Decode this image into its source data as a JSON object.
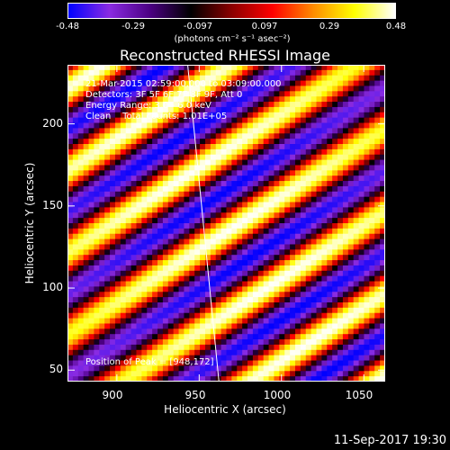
{
  "colorbar": {
    "ticks": [
      "-0.48",
      "-0.29",
      "-0.097",
      "0.097",
      "0.29",
      "0.48"
    ],
    "units": "(photons cm⁻² s⁻¹ asec⁻²)",
    "colors": [
      "#0000ff",
      "#8a2be2",
      "#4b0082",
      "#000000",
      "#8b0000",
      "#ff0000",
      "#ff8c00",
      "#ffff00",
      "#ffffff"
    ]
  },
  "info": {
    "line1": "21-Mar-2015 02:59:00.000 to 03:09:00.000",
    "line2": "Detectors: 3F 5F 6F 7F 8F 9F, Att 0",
    "line3": "Energy Range: 3.0 - 6.0 keV",
    "line4": "Clean    Total counts: 1.01E+05",
    "peak": "Position of Peak = [948,172]"
  },
  "footer": {
    "timestamp": "11-Sep-2017 19:30"
  },
  "chart_data": {
    "type": "heatmap",
    "title": "Reconstructed RHESSI Image",
    "xlabel": "Heliocentric X (arcsec)",
    "ylabel": "Heliocentric Y (arcsec)",
    "xlim": [
      870,
      1063
    ],
    "ylim": [
      43,
      236
    ],
    "xticks": [
      900,
      950,
      1000,
      1050
    ],
    "yticks": [
      50,
      100,
      150,
      200
    ],
    "value_range": [
      -0.48,
      0.48
    ],
    "peak": [
      948,
      172
    ],
    "limb_line": [
      [
        943,
        236
      ],
      [
        962,
        43
      ]
    ],
    "stripe_orientation_deg": 33,
    "stripe_period_arcsec": 42
  }
}
